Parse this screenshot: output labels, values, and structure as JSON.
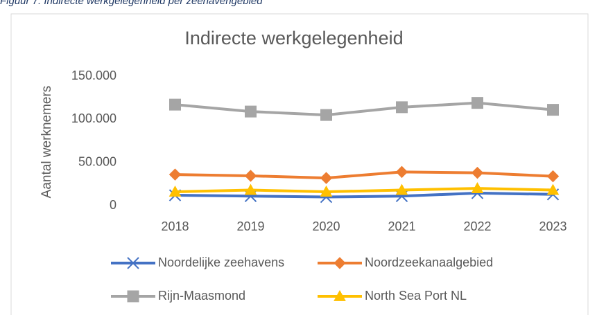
{
  "caption": "Figuur 7: Indirecte werkgelegenheid per zeehavengebied",
  "chart_data": {
    "type": "line",
    "title": "Indirecte werkgelegenheid",
    "y_label": "Aantal werknemers",
    "categories": [
      "2018",
      "2019",
      "2020",
      "2021",
      "2022",
      "2023"
    ],
    "series": [
      {
        "name": "Noordelijke zeehavens",
        "color": "#4472c4",
        "marker": "x",
        "values": [
          12000,
          11000,
          10000,
          11000,
          14500,
          13000
        ]
      },
      {
        "name": "Noordzeekanaalgebied",
        "color": "#ed7d31",
        "marker": "diamond",
        "values": [
          36000,
          34500,
          32000,
          39000,
          38000,
          34000
        ]
      },
      {
        "name": "Rijn-Maasmond",
        "color": "#a5a5a5",
        "marker": "square",
        "values": [
          117000,
          109000,
          105000,
          114000,
          119000,
          111000
        ]
      },
      {
        "name": "North Sea Port NL",
        "color": "#ffc000",
        "marker": "triangle",
        "values": [
          16000,
          18000,
          16000,
          18000,
          20000,
          18000
        ]
      }
    ],
    "ylim": [
      0,
      150000
    ],
    "yticks": [
      0,
      {
        "value": 50000,
        "label": "50.000"
      },
      {
        "value": 100000,
        "label": "100.000"
      },
      {
        "value": 150000,
        "label": "150.000"
      }
    ],
    "grid": false,
    "legend": "bottom"
  }
}
